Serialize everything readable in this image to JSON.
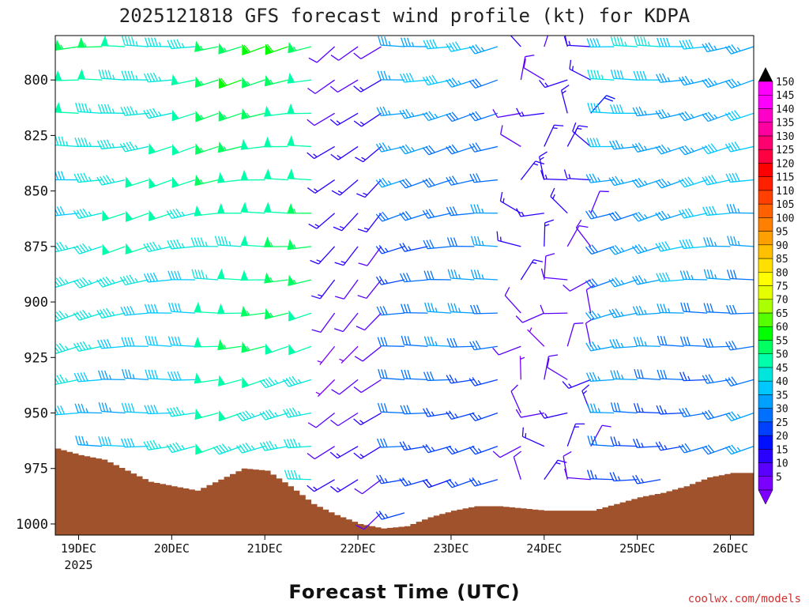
{
  "title": "2025121818 GFS forecast wind profile (kt) for KDPA",
  "credit": "coolwx.com/models",
  "chart_data": {
    "type": "wind-barb-time-height",
    "title": "2025121818 GFS forecast wind profile (kt) for KDPA",
    "xlabel": "Forecast Time (UTC)",
    "ylabel": "",
    "x_tick_labels": [
      "19DEC",
      "20DEC",
      "21DEC",
      "22DEC",
      "23DEC",
      "24DEC",
      "25DEC",
      "26DEC"
    ],
    "x_year_label": "2025",
    "x_range_days": [
      -0.25,
      7.25
    ],
    "y_tick_labels": [
      "800",
      "825",
      "850",
      "875",
      "900",
      "925",
      "950",
      "975",
      "1000"
    ],
    "y_range_hpa": [
      780,
      1005
    ],
    "barb_levels_hpa": [
      785,
      800,
      815,
      830,
      845,
      860,
      875,
      890,
      905,
      920,
      935,
      950,
      965,
      980,
      995
    ],
    "barb_interval_hours": 6,
    "colorbar": {
      "units": "kt",
      "ticks": [
        5,
        10,
        15,
        20,
        25,
        30,
        35,
        40,
        45,
        50,
        55,
        60,
        65,
        70,
        75,
        80,
        85,
        90,
        95,
        100,
        105,
        110,
        115,
        120,
        125,
        130,
        135,
        140,
        145,
        150
      ],
      "colors": [
        "#7b00ff",
        "#5a00ff",
        "#2a00ff",
        "#0010ff",
        "#0040ff",
        "#0070ff",
        "#00a0ff",
        "#00c8ff",
        "#00e6dc",
        "#00ffaa",
        "#00ff60",
        "#00ff00",
        "#55ff00",
        "#aaff00",
        "#e6ff00",
        "#ffff00",
        "#ffe000",
        "#ffc000",
        "#ffa000",
        "#ff8000",
        "#ff6000",
        "#ff4000",
        "#ff2000",
        "#ff0000",
        "#ff0040",
        "#ff0070",
        "#ff00a0",
        "#ff00c8",
        "#ff00ff",
        "#ff00ff"
      ]
    },
    "surface_pressure_hpa": [
      [
        -0.25,
        966
      ],
      [
        0.0,
        969
      ],
      [
        0.25,
        971
      ],
      [
        0.5,
        976
      ],
      [
        0.75,
        981
      ],
      [
        1.0,
        983
      ],
      [
        1.25,
        985
      ],
      [
        1.5,
        980
      ],
      [
        1.75,
        975
      ],
      [
        2.0,
        976
      ],
      [
        2.25,
        983
      ],
      [
        2.5,
        991
      ],
      [
        2.75,
        996
      ],
      [
        3.0,
        1000
      ],
      [
        3.25,
        1002
      ],
      [
        3.5,
        1001
      ],
      [
        3.75,
        997
      ],
      [
        4.0,
        994
      ],
      [
        4.25,
        992
      ],
      [
        4.5,
        992
      ],
      [
        4.75,
        993
      ],
      [
        5.0,
        994
      ],
      [
        5.25,
        994
      ],
      [
        5.5,
        994
      ],
      [
        5.75,
        991
      ],
      [
        6.0,
        988
      ],
      [
        6.25,
        986
      ],
      [
        6.5,
        983
      ],
      [
        6.75,
        979
      ],
      [
        7.0,
        977
      ],
      [
        7.25,
        977
      ]
    ],
    "wind_regimes": [
      {
        "period": "19DEC-20DEC",
        "direction": "westerly",
        "speed_kt": [
          30,
          50
        ]
      },
      {
        "period": "21DEC",
        "direction": "westerly",
        "speed_kt": [
          40,
          55
        ]
      },
      {
        "period": "22DEC",
        "direction": "southwesterly",
        "speed_kt": [
          5,
          15
        ]
      },
      {
        "period": "23DEC",
        "direction": "westerly",
        "speed_kt": [
          20,
          35
        ]
      },
      {
        "period": "24DEC",
        "direction": "variable",
        "speed_kt": [
          5,
          15
        ]
      },
      {
        "period": "25DEC-26DEC",
        "direction": "westerly",
        "speed_kt": [
          20,
          40
        ]
      }
    ]
  }
}
